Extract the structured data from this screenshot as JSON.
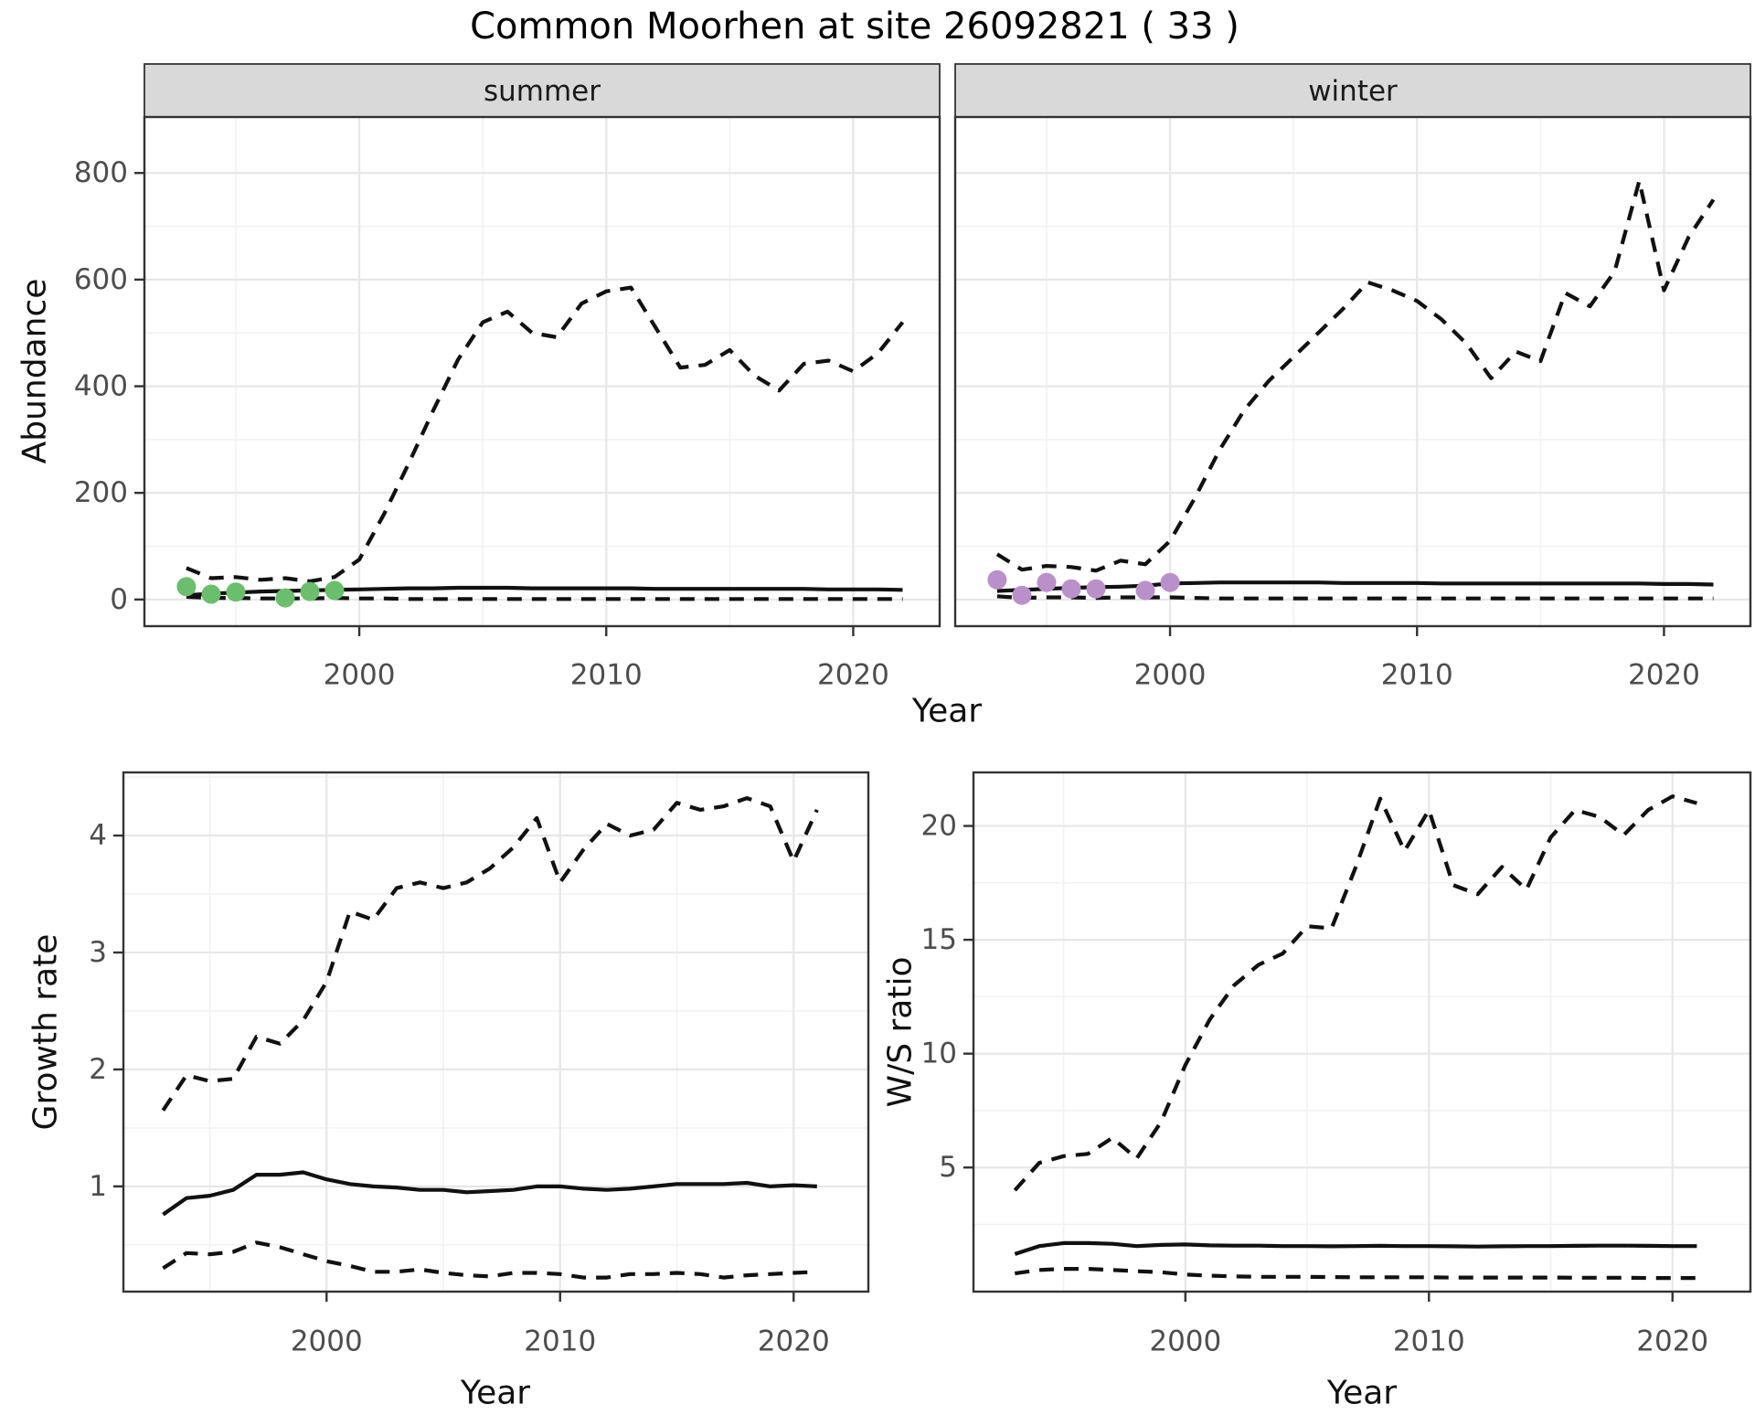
{
  "title": "Common Moorhen at site 26092821 ( 33 )",
  "colors": {
    "summer_points": "#6abf6c",
    "winter_points": "#ba90cb",
    "ci_line": "#111111",
    "median_line": "#111111",
    "strip_bg": "#d9d9d9",
    "panel_border": "#333333",
    "grid_major": "#e7e7e7",
    "grid_minor": "#f2f2f2",
    "axis_text": "#4d4d4d",
    "title_text": "#000000"
  },
  "chart_data": [
    {
      "id": "abundance-summer",
      "type": "line",
      "facet": "summer",
      "xlabel": "Year",
      "ylabel": "Abundance",
      "x": [
        1993,
        1994,
        1995,
        1996,
        1997,
        1998,
        1999,
        2000,
        2001,
        2002,
        2003,
        2004,
        2005,
        2006,
        2007,
        2008,
        2009,
        2010,
        2011,
        2012,
        2013,
        2014,
        2015,
        2016,
        2017,
        2018,
        2019,
        2020,
        2021,
        2022
      ],
      "series": [
        {
          "name": "upper-credible",
          "style": "dashed",
          "values": [
            59,
            40,
            42,
            37,
            40,
            34,
            42,
            75,
            160,
            255,
            355,
            450,
            520,
            540,
            500,
            492,
            555,
            578,
            585,
            510,
            435,
            440,
            468,
            420,
            392,
            442,
            448,
            428,
            462,
            520
          ]
        },
        {
          "name": "median",
          "style": "solid",
          "values": [
            8,
            11,
            13,
            15,
            16,
            17,
            18,
            19,
            20,
            21,
            21,
            22,
            22,
            22,
            21,
            21,
            21,
            21,
            21,
            20,
            20,
            20,
            20,
            20,
            20,
            20,
            19,
            19,
            19,
            18
          ]
        },
        {
          "name": "lower-credible",
          "style": "dashed",
          "values": [
            5,
            3,
            3,
            2,
            2,
            2,
            3,
            2,
            2,
            1,
            1,
            1,
            1,
            1,
            1,
            1,
            1,
            1,
            1,
            1,
            1,
            1,
            1,
            1,
            1,
            1,
            1,
            1,
            1,
            1
          ]
        }
      ],
      "points": {
        "name": "observed-counts",
        "color": "#6abf6c",
        "x": [
          1993,
          1994,
          1995,
          1997,
          1998,
          1999
        ],
        "y": [
          24,
          10,
          14,
          3,
          15,
          17
        ]
      },
      "xlim": [
        1991.3,
        2023.5
      ],
      "ylim": [
        -50,
        905
      ],
      "xticks": [
        2000,
        2010,
        2020
      ],
      "xminor": [
        1995,
        2005,
        2015
      ],
      "yticks": [
        0,
        200,
        400,
        600,
        800
      ],
      "yminor": [
        100,
        300,
        500,
        700
      ],
      "grid": true,
      "legend": "none"
    },
    {
      "id": "abundance-winter",
      "type": "line",
      "facet": "winter",
      "xlabel": "Year",
      "ylabel": "Abundance",
      "x": [
        1993,
        1994,
        1995,
        1996,
        1997,
        1998,
        1999,
        2000,
        2001,
        2002,
        2003,
        2004,
        2005,
        2006,
        2007,
        2008,
        2009,
        2010,
        2011,
        2012,
        2013,
        2014,
        2015,
        2016,
        2017,
        2018,
        2019,
        2020,
        2021,
        2022
      ],
      "series": [
        {
          "name": "upper-credible",
          "style": "dashed",
          "values": [
            85,
            56,
            63,
            61,
            54,
            73,
            66,
            110,
            190,
            280,
            355,
            410,
            455,
            500,
            545,
            595,
            580,
            560,
            525,
            480,
            415,
            465,
            447,
            575,
            550,
            615,
            785,
            580,
            680,
            750
          ]
        },
        {
          "name": "median",
          "style": "solid",
          "values": [
            16,
            18,
            20,
            22,
            23,
            24,
            26,
            30,
            31,
            32,
            32,
            32,
            32,
            32,
            31,
            31,
            31,
            31,
            30,
            30,
            30,
            30,
            30,
            30,
            30,
            30,
            30,
            29,
            29,
            28
          ]
        },
        {
          "name": "lower-credible",
          "style": "dashed",
          "values": [
            6,
            3,
            4,
            4,
            3,
            4,
            4,
            4,
            3,
            2,
            2,
            2,
            2,
            2,
            2,
            2,
            2,
            2,
            2,
            2,
            2,
            2,
            2,
            2,
            2,
            2,
            2,
            2,
            2,
            2
          ]
        }
      ],
      "points": {
        "name": "observed-counts",
        "color": "#ba90cb",
        "x": [
          1993,
          1994,
          1995,
          1996,
          1997,
          1999,
          2000
        ],
        "y": [
          37,
          8,
          32,
          20,
          20,
          17,
          32
        ]
      },
      "xlim": [
        1991.3,
        2023.5
      ],
      "ylim": [
        -50,
        905
      ],
      "xticks": [
        2000,
        2010,
        2020
      ],
      "xminor": [
        1995,
        2005,
        2015
      ],
      "yticks": [
        0,
        200,
        400,
        600,
        800
      ],
      "yminor": [
        100,
        300,
        500,
        700
      ],
      "grid": true,
      "legend": "none"
    },
    {
      "id": "growth-rate",
      "type": "line",
      "facet": "",
      "xlabel": "Year",
      "ylabel": "Growth rate",
      "x": [
        1993,
        1994,
        1995,
        1996,
        1997,
        1998,
        1999,
        2000,
        2001,
        2002,
        2003,
        2004,
        2005,
        2006,
        2007,
        2008,
        2009,
        2010,
        2011,
        2012,
        2013,
        2014,
        2015,
        2016,
        2017,
        2018,
        2019,
        2020,
        2021
      ],
      "series": [
        {
          "name": "upper-credible",
          "style": "dashed",
          "values": [
            1.65,
            1.95,
            1.9,
            1.92,
            2.28,
            2.22,
            2.42,
            2.75,
            3.35,
            3.28,
            3.55,
            3.6,
            3.55,
            3.6,
            3.72,
            3.9,
            4.15,
            3.6,
            3.88,
            4.1,
            4.0,
            4.05,
            4.28,
            4.22,
            4.25,
            4.32,
            4.25,
            3.78,
            4.22
          ]
        },
        {
          "name": "median",
          "style": "solid",
          "values": [
            0.76,
            0.9,
            0.92,
            0.97,
            1.1,
            1.1,
            1.12,
            1.06,
            1.02,
            1.0,
            0.99,
            0.97,
            0.97,
            0.95,
            0.96,
            0.97,
            1.0,
            1.0,
            0.98,
            0.97,
            0.98,
            1.0,
            1.02,
            1.02,
            1.02,
            1.03,
            1.0,
            1.01,
            1.0
          ]
        },
        {
          "name": "lower-credible",
          "style": "dashed",
          "values": [
            0.3,
            0.43,
            0.42,
            0.44,
            0.52,
            0.48,
            0.42,
            0.36,
            0.32,
            0.27,
            0.27,
            0.29,
            0.26,
            0.24,
            0.23,
            0.26,
            0.26,
            0.25,
            0.22,
            0.22,
            0.25,
            0.25,
            0.26,
            0.25,
            0.22,
            0.24,
            0.25,
            0.26,
            0.27
          ]
        }
      ],
      "xlim": [
        1991.3,
        2023.2
      ],
      "ylim": [
        0.1,
        4.54
      ],
      "xticks": [
        2000,
        2010,
        2020
      ],
      "xminor": [
        1995,
        2005,
        2015
      ],
      "yticks": [
        1,
        2,
        3,
        4
      ],
      "yminor": [
        0.5,
        1.5,
        2.5,
        3.5,
        4.5
      ],
      "grid": true,
      "legend": "none"
    },
    {
      "id": "ws-ratio",
      "type": "line",
      "facet": "",
      "xlabel": "Year",
      "ylabel": "W/S ratio",
      "x": [
        1993,
        1994,
        1995,
        1996,
        1997,
        1998,
        1999,
        2000,
        2001,
        2002,
        2003,
        2004,
        2005,
        2006,
        2007,
        2008,
        2009,
        2010,
        2011,
        2012,
        2013,
        2014,
        2015,
        2016,
        2017,
        2018,
        2019,
        2020,
        2021
      ],
      "series": [
        {
          "name": "upper-credible",
          "style": "dashed",
          "values": [
            4.0,
            5.2,
            5.5,
            5.6,
            6.3,
            5.4,
            7.0,
            9.5,
            11.5,
            13.0,
            13.9,
            14.4,
            15.6,
            15.5,
            18.2,
            21.2,
            18.9,
            20.7,
            17.4,
            17.0,
            18.2,
            17.2,
            19.5,
            20.7,
            20.4,
            19.6,
            20.7,
            21.3,
            21.0
          ]
        },
        {
          "name": "median",
          "style": "solid",
          "values": [
            1.2,
            1.55,
            1.68,
            1.68,
            1.65,
            1.55,
            1.6,
            1.62,
            1.58,
            1.57,
            1.57,
            1.55,
            1.55,
            1.54,
            1.55,
            1.56,
            1.55,
            1.55,
            1.54,
            1.53,
            1.54,
            1.55,
            1.55,
            1.56,
            1.57,
            1.57,
            1.56,
            1.55,
            1.55
          ]
        },
        {
          "name": "lower-credible",
          "style": "dashed",
          "values": [
            0.35,
            0.5,
            0.55,
            0.55,
            0.5,
            0.45,
            0.4,
            0.3,
            0.25,
            0.22,
            0.2,
            0.2,
            0.2,
            0.19,
            0.18,
            0.18,
            0.18,
            0.18,
            0.17,
            0.17,
            0.17,
            0.17,
            0.17,
            0.16,
            0.16,
            0.16,
            0.15,
            0.15,
            0.15
          ]
        }
      ],
      "xlim": [
        1991.3,
        2023.2
      ],
      "ylim": [
        -0.45,
        22.35
      ],
      "xticks": [
        2000,
        2010,
        2020
      ],
      "xminor": [
        1995,
        2005,
        2015
      ],
      "yticks": [
        5,
        10,
        15,
        20
      ],
      "yminor": [
        2.5,
        7.5,
        12.5,
        17.5
      ],
      "grid": true,
      "legend": "none"
    }
  ]
}
